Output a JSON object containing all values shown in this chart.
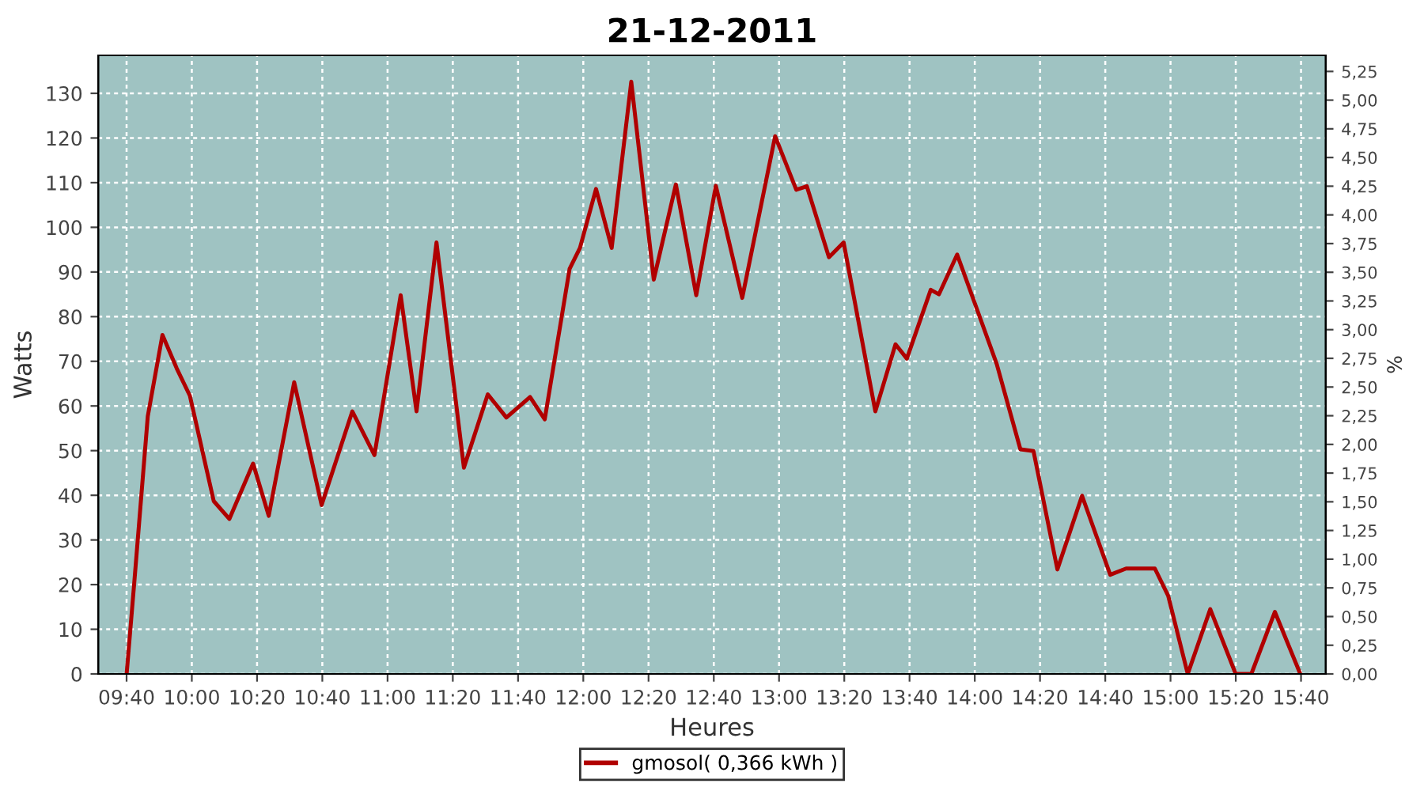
{
  "chart_data": {
    "type": "line",
    "title": "21-12-2011",
    "xlabel": "Heures",
    "ylabel": "Watts",
    "y2label": "%",
    "x": [
      9.667,
      9.707,
      9.775,
      9.85,
      9.923,
      9.99,
      10.112,
      10.192,
      10.313,
      10.393,
      10.523,
      10.663,
      10.82,
      10.933,
      11.067,
      11.148,
      11.25,
      11.39,
      11.512,
      11.607,
      11.728,
      11.803,
      11.93,
      11.983,
      12.065,
      12.145,
      12.245,
      12.36,
      12.473,
      12.577,
      12.677,
      12.812,
      12.98,
      13.088,
      13.142,
      13.255,
      13.33,
      13.492,
      13.595,
      13.653,
      13.775,
      13.817,
      13.91,
      14.005,
      14.112,
      14.233,
      14.3,
      14.422,
      14.548,
      14.692,
      14.773,
      14.92,
      14.988,
      15.088,
      15.203,
      15.333,
      15.413,
      15.533,
      15.663
    ],
    "series": [
      {
        "name": "gmosol( 0,366 kWh )",
        "color": "#b00000",
        "values": [
          0,
          21,
          57.7,
          75.9,
          68.4,
          62.3,
          38.7,
          34.7,
          47.1,
          35.4,
          65.3,
          37.8,
          58.8,
          49,
          84.8,
          58.8,
          96.6,
          46.2,
          62.6,
          57.4,
          62,
          57,
          90.7,
          95.4,
          108.6,
          95.4,
          132.6,
          88.3,
          109.6,
          84.8,
          109.3,
          84.2,
          120.4,
          108.4,
          109.2,
          93.3,
          96.6,
          58.8,
          73.8,
          70.6,
          86,
          85,
          93.9,
          82.4,
          69.4,
          50.3,
          49.9,
          23.4,
          39.9,
          22.2,
          23.6,
          23.6,
          17.5,
          0,
          14.5,
          0,
          0,
          13.9,
          0
        ]
      }
    ],
    "xlim": [
      9.522,
      15.793
    ],
    "xticks": [
      {
        "value": 9.6667,
        "label": "09:40"
      },
      {
        "value": 10,
        "label": "10:00"
      },
      {
        "value": 10.3333,
        "label": "10:20"
      },
      {
        "value": 10.6667,
        "label": "10:40"
      },
      {
        "value": 11,
        "label": "11:00"
      },
      {
        "value": 11.3333,
        "label": "11:20"
      },
      {
        "value": 11.6667,
        "label": "11:40"
      },
      {
        "value": 12,
        "label": "12:00"
      },
      {
        "value": 12.3333,
        "label": "12:20"
      },
      {
        "value": 12.6667,
        "label": "12:40"
      },
      {
        "value": 13,
        "label": "13:00"
      },
      {
        "value": 13.3333,
        "label": "13:20"
      },
      {
        "value": 13.6667,
        "label": "13:40"
      },
      {
        "value": 14,
        "label": "14:00"
      },
      {
        "value": 14.3333,
        "label": "14:20"
      },
      {
        "value": 14.6667,
        "label": "14:40"
      },
      {
        "value": 15,
        "label": "15:00"
      },
      {
        "value": 15.3333,
        "label": "15:20"
      },
      {
        "value": 15.6667,
        "label": "15:40"
      }
    ],
    "ylim": [
      0,
      138.5
    ],
    "yticks": [
      0,
      10,
      20,
      30,
      40,
      50,
      60,
      70,
      80,
      90,
      100,
      110,
      120,
      130
    ],
    "y2lim": [
      0,
      5.39
    ],
    "y2ticks": [
      {
        "value": 0,
        "label": "0,00"
      },
      {
        "value": 0.25,
        "label": "0,25"
      },
      {
        "value": 0.5,
        "label": "0,50"
      },
      {
        "value": 0.75,
        "label": "0,75"
      },
      {
        "value": 1,
        "label": "1,00"
      },
      {
        "value": 1.25,
        "label": "1,25"
      },
      {
        "value": 1.5,
        "label": "1,50"
      },
      {
        "value": 1.75,
        "label": "1,75"
      },
      {
        "value": 2,
        "label": "2,00"
      },
      {
        "value": 2.25,
        "label": "2,25"
      },
      {
        "value": 2.5,
        "label": "2,50"
      },
      {
        "value": 2.75,
        "label": "2,75"
      },
      {
        "value": 3,
        "label": "3,00"
      },
      {
        "value": 3.25,
        "label": "3,25"
      },
      {
        "value": 3.5,
        "label": "3,50"
      },
      {
        "value": 3.75,
        "label": "3,75"
      },
      {
        "value": 4,
        "label": "4,00"
      },
      {
        "value": 4.25,
        "label": "4,25"
      },
      {
        "value": 4.5,
        "label": "4,50"
      },
      {
        "value": 4.75,
        "label": "4,75"
      },
      {
        "value": 5,
        "label": "5,00"
      },
      {
        "value": 5.25,
        "label": "5,25"
      }
    ],
    "grid": true,
    "legend": "bottom",
    "marker": "none",
    "line_style": "solid"
  }
}
